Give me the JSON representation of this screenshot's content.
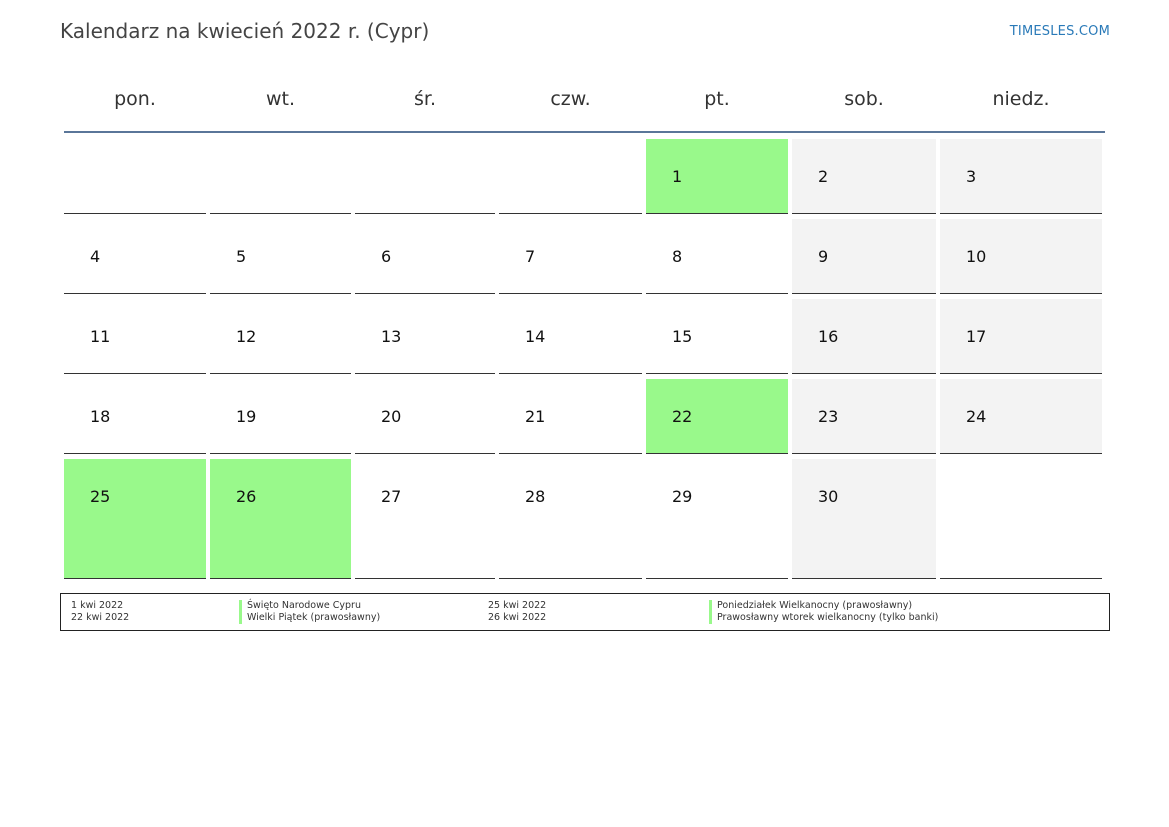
{
  "header": {
    "title": "Kalendarz na kwiecień 2022 r. (Cypr)",
    "site": "TIMESLES.COM"
  },
  "weekdays": [
    "pon.",
    "wt.",
    "śr.",
    "czw.",
    "pt.",
    "sob.",
    "niedz."
  ],
  "weeks": [
    [
      "",
      "",
      "",
      "",
      "1",
      "2",
      "3"
    ],
    [
      "4",
      "5",
      "6",
      "7",
      "8",
      "9",
      "10"
    ],
    [
      "11",
      "12",
      "13",
      "14",
      "15",
      "16",
      "17"
    ],
    [
      "18",
      "19",
      "20",
      "21",
      "22",
      "23",
      "24"
    ],
    [
      "25",
      "26",
      "27",
      "28",
      "29",
      "30",
      ""
    ]
  ],
  "holiday_days": [
    "1",
    "22",
    "25",
    "26"
  ],
  "colors": {
    "holiday": "#99f98b",
    "weekend": "#f3f3f3",
    "header_rule": "#5a7699",
    "site_link": "#2a7ab8"
  },
  "legend": [
    {
      "date": "1 kwi 2022",
      "name": "Święto Narodowe Cypru"
    },
    {
      "date": "22 kwi 2022",
      "name": "Wielki Piątek (prawosławny)"
    },
    {
      "date": "25 kwi 2022",
      "name": "Poniedziałek Wielkanocny (prawosławny)"
    },
    {
      "date": "26 kwi 2022",
      "name": "Prawosławny wtorek wielkanocny (tylko banki)"
    }
  ]
}
